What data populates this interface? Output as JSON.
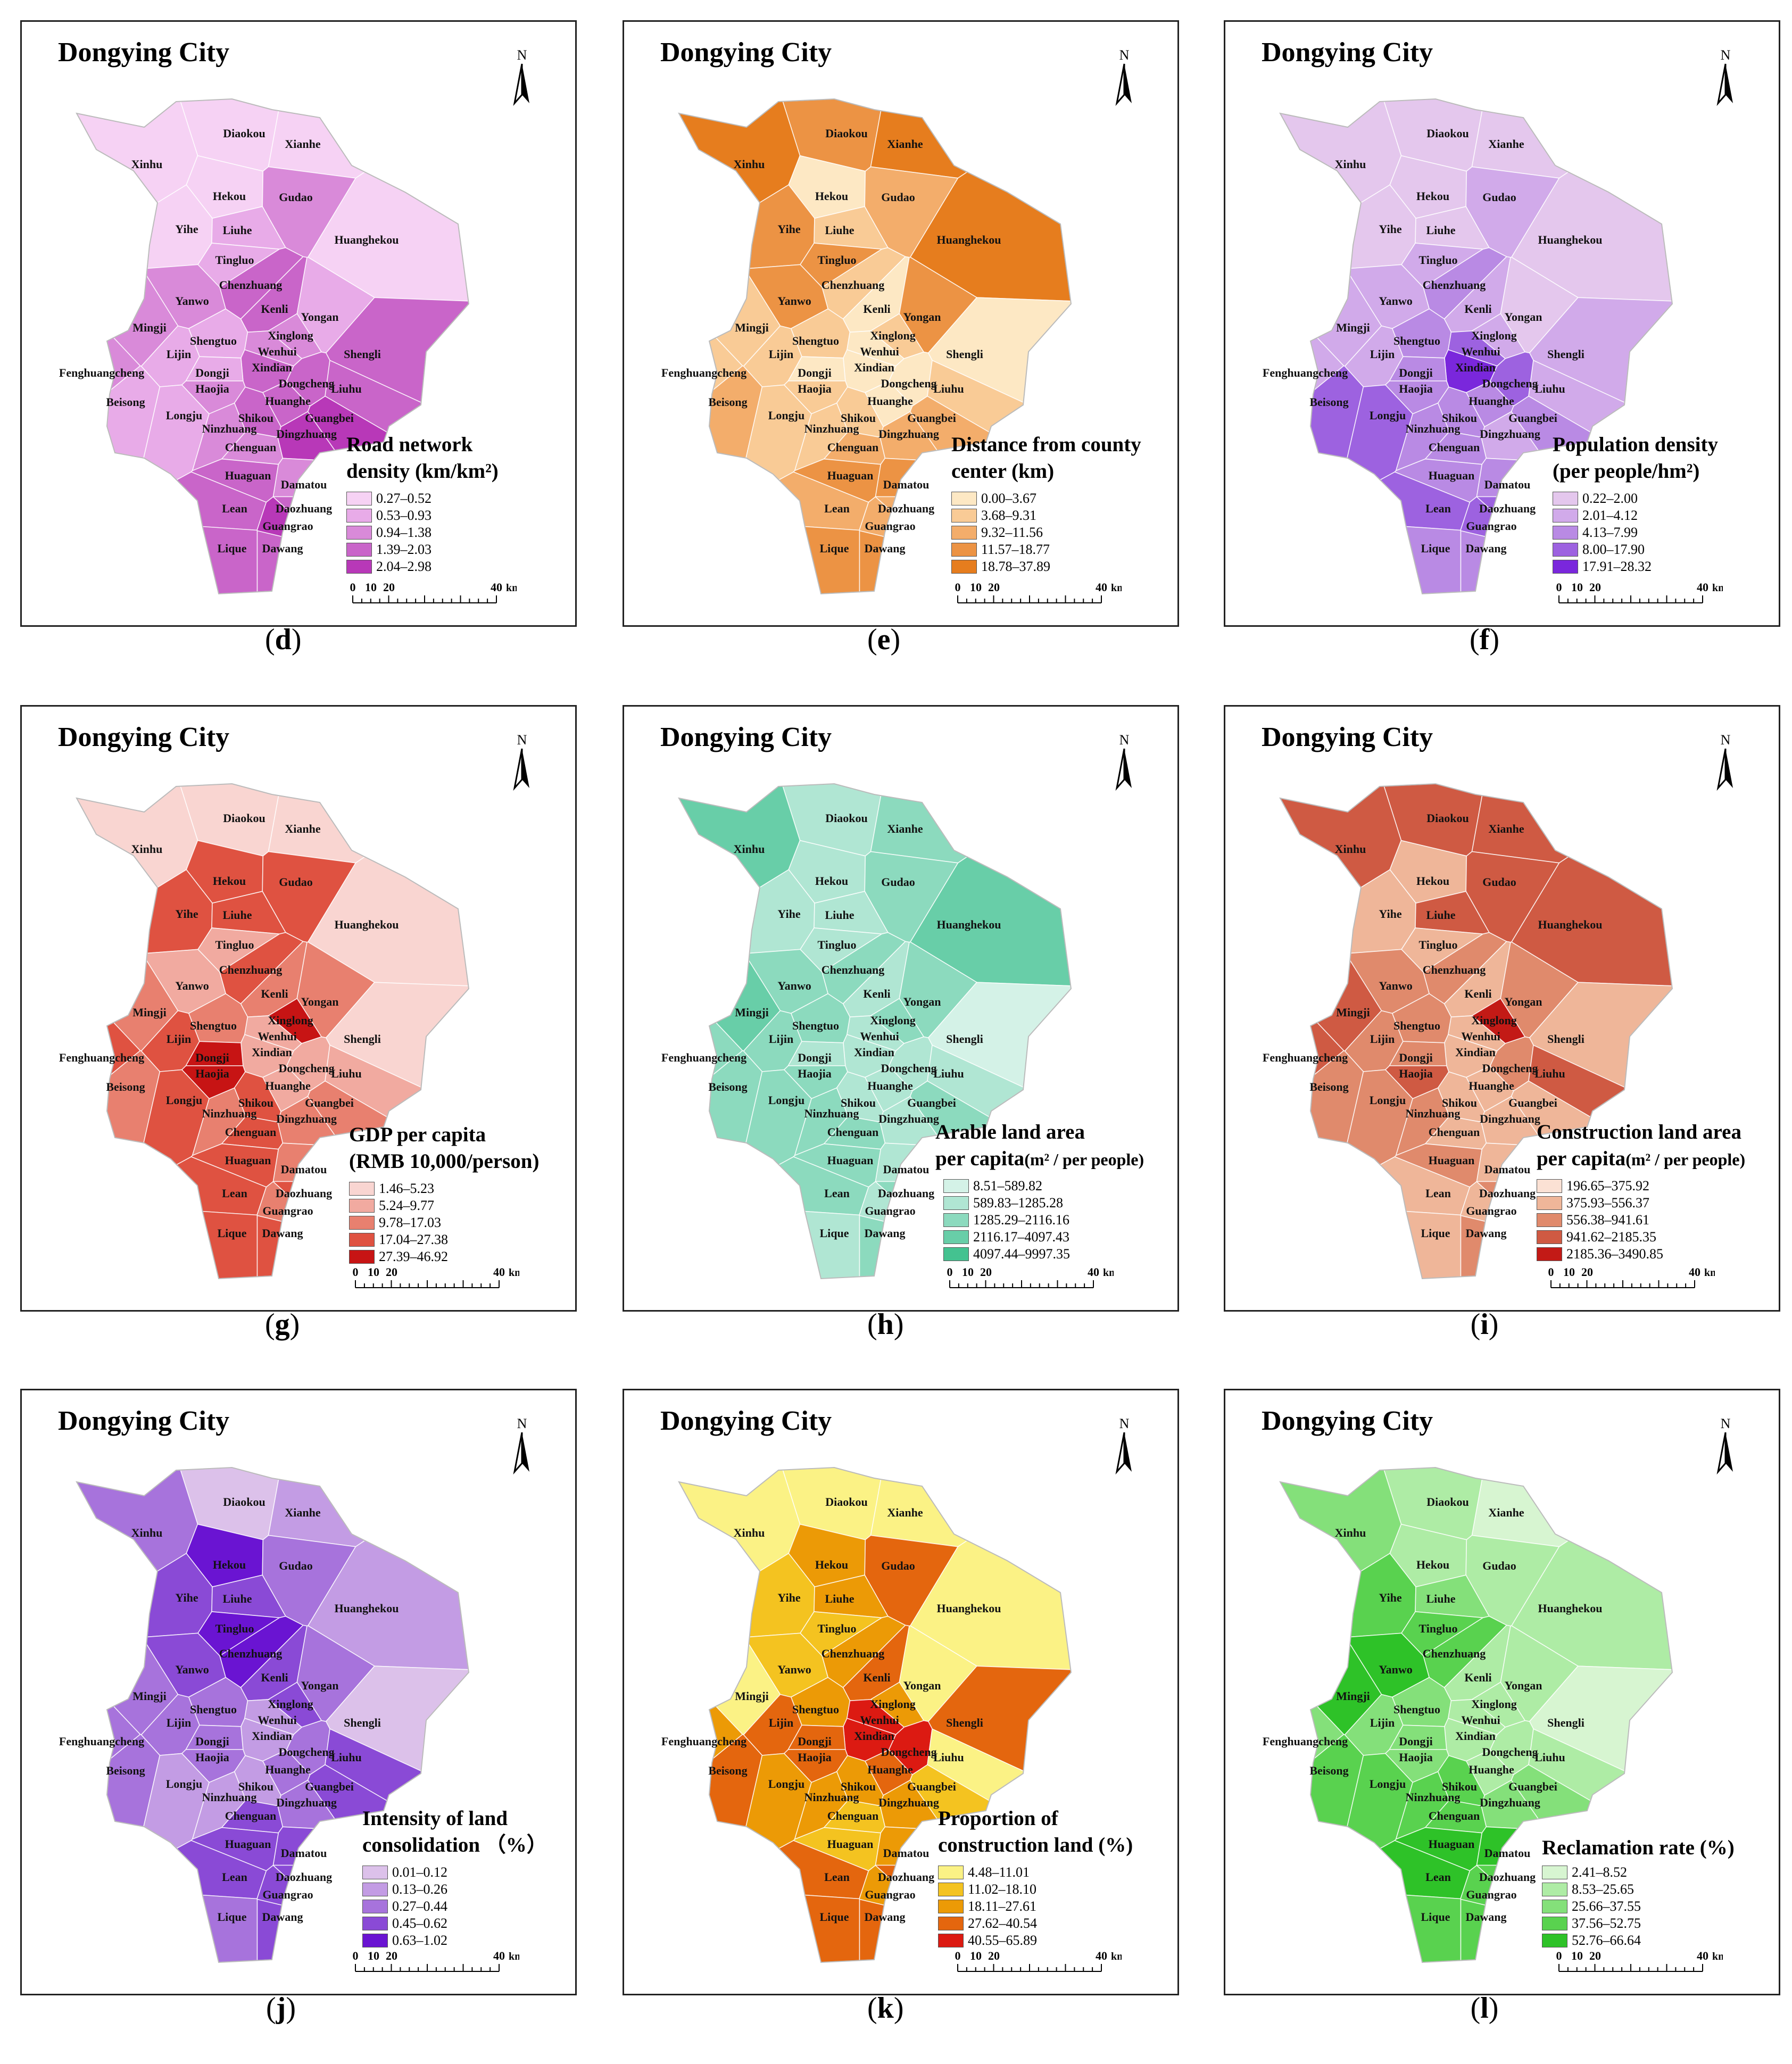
{
  "city_title": "Dongying City",
  "north_label": "N",
  "scale": {
    "ticks": [
      "0",
      "10",
      "20",
      "40"
    ],
    "unit": "km"
  },
  "towns": [
    {
      "name": "Diaokou"
    },
    {
      "name": "Xianhe"
    },
    {
      "name": "Xinhu"
    },
    {
      "name": "Hekou"
    },
    {
      "name": "Gudao"
    },
    {
      "name": "Yihe"
    },
    {
      "name": "Liuhe"
    },
    {
      "name": "Huanghekou"
    },
    {
      "name": "Tingluo"
    },
    {
      "name": "Chenzhuang"
    },
    {
      "name": "Yanwo"
    },
    {
      "name": "Kenli"
    },
    {
      "name": "Yongan"
    },
    {
      "name": "Xinglong"
    },
    {
      "name": "Mingji"
    },
    {
      "name": "Shengtuo"
    },
    {
      "name": "Wenhui"
    },
    {
      "name": "Shengli"
    },
    {
      "name": "Lijin"
    },
    {
      "name": "Xindian"
    },
    {
      "name": "Fenghuangcheng"
    },
    {
      "name": "Dongji"
    },
    {
      "name": "Haojia"
    },
    {
      "name": "Dongcheng"
    },
    {
      "name": "Liuhu"
    },
    {
      "name": "Beisong"
    },
    {
      "name": "Huanghe"
    },
    {
      "name": "Longju"
    },
    {
      "name": "Shikou"
    },
    {
      "name": "Guangbei"
    },
    {
      "name": "Ninzhuang"
    },
    {
      "name": "Dingzhuang"
    },
    {
      "name": "Chenguan"
    },
    {
      "name": "Huaguan"
    },
    {
      "name": "Damatou"
    },
    {
      "name": "Lean"
    },
    {
      "name": "Daozhuang"
    },
    {
      "name": "Guangrao"
    },
    {
      "name": "Lique"
    },
    {
      "name": "Dawang"
    }
  ],
  "panels": [
    {
      "letter": "d",
      "title_lines": [
        "Road network",
        "density (km/km²)"
      ],
      "unit_note": "",
      "classes": [
        "0.27–0.52",
        "0.53–0.93",
        "0.94–1.38",
        "1.39–2.03",
        "2.04–2.98"
      ],
      "colors": [
        "#f6d2f4",
        "#e8abe8",
        "#d98ad9",
        "#c965c9",
        "#b838b8"
      ],
      "region_classes": [
        0,
        0,
        0,
        0,
        2,
        0,
        1,
        0,
        1,
        3,
        2,
        3,
        1,
        2,
        2,
        1,
        2,
        3,
        1,
        3,
        2,
        1,
        2,
        3,
        3,
        1,
        3,
        1,
        3,
        4,
        2,
        4,
        2,
        3,
        2,
        3,
        3,
        4,
        3,
        3
      ]
    },
    {
      "letter": "e",
      "title_lines": [
        "Distance from county",
        "center (km)"
      ],
      "unit_note": "",
      "classes": [
        "0.00–3.67",
        "3.68–9.31",
        "9.32–11.56",
        "11.57–18.77",
        "18.78–37.89"
      ],
      "colors": [
        "#fde8c4",
        "#f9cb96",
        "#f3ad6b",
        "#ec9344",
        "#e67d1e"
      ],
      "region_classes": [
        3,
        4,
        4,
        0,
        2,
        3,
        1,
        4,
        3,
        1,
        3,
        0,
        3,
        1,
        1,
        1,
        0,
        0,
        1,
        0,
        1,
        0,
        1,
        0,
        1,
        2,
        0,
        1,
        1,
        2,
        1,
        2,
        2,
        3,
        3,
        2,
        2,
        2,
        3,
        3
      ]
    },
    {
      "letter": "f",
      "title_lines": [
        "Population density",
        "(per people/hm²)"
      ],
      "unit_note": "",
      "classes": [
        "0.22–2.00",
        "2.01–4.12",
        "4.13–7.99",
        "8.00–17.90",
        "17.91–28.32"
      ],
      "colors": [
        "#e4c7ed",
        "#d1aaea",
        "#b98ae4",
        "#9d62e0",
        "#7a27dc"
      ],
      "region_classes": [
        0,
        0,
        0,
        0,
        1,
        0,
        0,
        0,
        1,
        2,
        1,
        1,
        0,
        1,
        1,
        2,
        3,
        1,
        1,
        4,
        1,
        2,
        2,
        3,
        1,
        3,
        2,
        3,
        2,
        2,
        2,
        1,
        2,
        2,
        2,
        3,
        3,
        3,
        2,
        2
      ]
    },
    {
      "letter": "g",
      "title_lines": [
        "GDP per capita",
        "(RMB 10,000/person)"
      ],
      "unit_note": "",
      "classes": [
        "1.46–5.23",
        "5.24–9.77",
        "9.78–17.03",
        "17.04–27.38",
        "27.39–46.92"
      ],
      "colors": [
        "#f9d5d1",
        "#f1aaa0",
        "#e8806f",
        "#df5241",
        "#c71414"
      ],
      "region_classes": [
        0,
        0,
        0,
        3,
        3,
        3,
        3,
        0,
        1,
        3,
        1,
        2,
        2,
        4,
        2,
        2,
        1,
        0,
        3,
        1,
        3,
        4,
        4,
        1,
        1,
        2,
        1,
        3,
        3,
        2,
        2,
        2,
        3,
        3,
        2,
        3,
        3,
        2,
        3,
        3
      ]
    },
    {
      "letter": "h",
      "title_lines": [
        "Arable land area",
        "per capita"
      ],
      "unit_note": "(m² / per people)",
      "classes": [
        "8.51–589.82",
        "589.83–1285.28",
        "1285.29–2116.16",
        "2116.17–4097.43",
        "4097.44–9997.35"
      ],
      "colors": [
        "#d4f2e7",
        "#b0e6d3",
        "#8cdabe",
        "#68cea8",
        "#44c290"
      ],
      "region_classes": [
        1,
        2,
        3,
        1,
        2,
        1,
        1,
        3,
        1,
        2,
        2,
        1,
        2,
        2,
        3,
        2,
        1,
        0,
        2,
        1,
        2,
        1,
        2,
        1,
        1,
        2,
        1,
        2,
        1,
        2,
        2,
        1,
        2,
        2,
        1,
        2,
        2,
        1,
        1,
        2
      ]
    },
    {
      "letter": "i",
      "title_lines": [
        "Construction land area",
        "per capita"
      ],
      "unit_note": "(m² / per people)",
      "classes": [
        "196.65–375.92",
        "375.93–556.37",
        "556.38–941.61",
        "941.62–2185.35",
        "2185.36–3490.85"
      ],
      "colors": [
        "#fbe1d4",
        "#efb699",
        "#e08a6c",
        "#cf5a43",
        "#c31a16"
      ],
      "region_classes": [
        3,
        3,
        3,
        1,
        3,
        1,
        3,
        3,
        1,
        2,
        2,
        1,
        2,
        4,
        3,
        2,
        1,
        1,
        2,
        1,
        3,
        2,
        3,
        2,
        3,
        2,
        1,
        2,
        1,
        1,
        2,
        1,
        1,
        2,
        1,
        1,
        2,
        1,
        1,
        2
      ]
    },
    {
      "letter": "j",
      "title_lines": [
        "Intensity of land",
        "consolidation （%）"
      ],
      "unit_note": "",
      "classes": [
        "0.01–0.12",
        "0.13–0.26",
        "0.27–0.44",
        "0.45–0.62",
        "0.63–1.02"
      ],
      "colors": [
        "#dcc1ea",
        "#c39ce4",
        "#a773dc",
        "#8a4ad6",
        "#6a14d2"
      ],
      "region_classes": [
        0,
        1,
        2,
        4,
        2,
        3,
        3,
        1,
        4,
        4,
        3,
        3,
        2,
        3,
        2,
        2,
        1,
        0,
        2,
        1,
        2,
        2,
        2,
        2,
        3,
        2,
        2,
        1,
        1,
        3,
        1,
        2,
        3,
        3,
        3,
        3,
        3,
        3,
        2,
        3
      ]
    },
    {
      "letter": "k",
      "title_lines": [
        "Proportion of",
        "construction land (%)"
      ],
      "unit_note": "",
      "classes": [
        "4.48–11.01",
        "11.02–18.10",
        "18.11–27.61",
        "27.62–40.54",
        "40.55–65.89"
      ],
      "colors": [
        "#fbf285",
        "#f4c320",
        "#ec9a06",
        "#e4660e",
        "#dc1a12"
      ],
      "region_classes": [
        0,
        0,
        0,
        2,
        3,
        1,
        2,
        0,
        1,
        2,
        1,
        3,
        0,
        2,
        0,
        2,
        4,
        3,
        3,
        4,
        2,
        3,
        3,
        4,
        0,
        3,
        3,
        2,
        2,
        1,
        2,
        2,
        1,
        1,
        2,
        3,
        3,
        2,
        3,
        3
      ]
    },
    {
      "letter": "l",
      "title_lines": [
        "Reclamation rate (%)"
      ],
      "unit_note": "",
      "classes": [
        "2.41–8.52",
        "8.53–25.65",
        "25.66–37.55",
        "37.56–52.75",
        "52.76–66.64"
      ],
      "colors": [
        "#d7f5d1",
        "#aeeca5",
        "#84e07a",
        "#59d24f",
        "#2ec228"
      ],
      "region_classes": [
        1,
        0,
        2,
        1,
        1,
        3,
        2,
        1,
        3,
        3,
        4,
        1,
        1,
        1,
        4,
        2,
        1,
        0,
        2,
        1,
        2,
        2,
        2,
        1,
        1,
        3,
        1,
        3,
        3,
        2,
        3,
        2,
        3,
        4,
        4,
        4,
        3,
        3,
        3,
        3
      ]
    }
  ]
}
